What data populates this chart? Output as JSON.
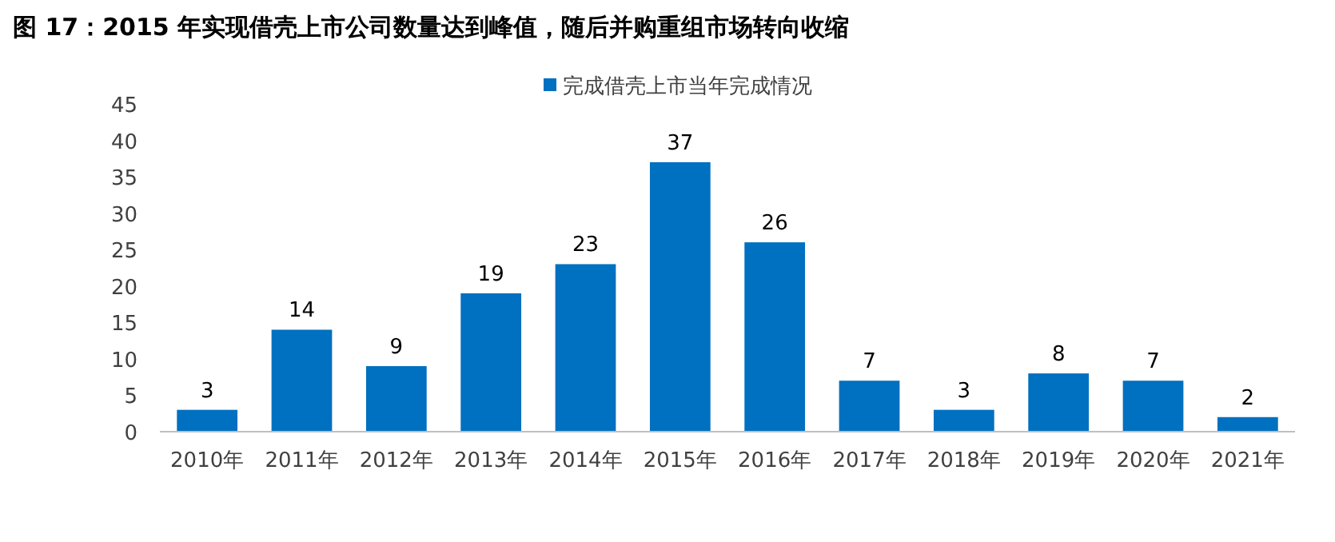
{
  "chart_data": {
    "type": "bar",
    "title": "图 17：2015 年实现借壳上市公司数量达到峰值，随后并购重组市场转向收缩",
    "categories": [
      "2010年",
      "2011年",
      "2012年",
      "2013年",
      "2014年",
      "2015年",
      "2016年",
      "2017年",
      "2018年",
      "2019年",
      "2020年",
      "2021年"
    ],
    "series": [
      {
        "name": "完成借壳上市当年完成情况",
        "color": "#0070c0",
        "values": [
          3,
          14,
          9,
          19,
          23,
          37,
          26,
          7,
          3,
          8,
          7,
          2
        ]
      }
    ],
    "ylim": [
      0,
      45
    ],
    "yticks": [
      0,
      5,
      10,
      15,
      20,
      25,
      30,
      35,
      40,
      45
    ],
    "data_labels": true,
    "legend": "top"
  }
}
